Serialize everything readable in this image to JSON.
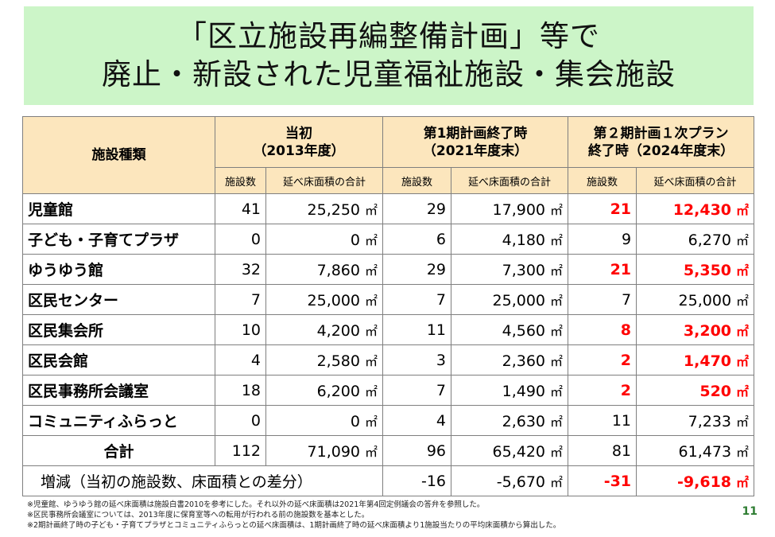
{
  "title": {
    "line1": "「区立施設再編整備計画」等で",
    "line2": "廃止・新設された児童福祉施設・集会施設"
  },
  "table": {
    "header": {
      "type_col": "施設種類",
      "g1_line1": "当初",
      "g1_line2": "（2013年度）",
      "g2_line1": "第1期計画終了時",
      "g2_line2": "（2021年度末）",
      "g3_line1": "第２期計画１次プラン",
      "g3_line2": "終了時（2024年度末）",
      "count": "施設数",
      "area": "延べ床面積の合計"
    },
    "unit": "㎡",
    "rows": [
      {
        "name": "児童館",
        "c1": "41",
        "a1": "25,250",
        "c2": "29",
        "a2": "17,900",
        "c3": "21",
        "a3": "12,430"
      },
      {
        "name": "子ども・子育てプラザ",
        "c1": "0",
        "a1": "0",
        "c2": "6",
        "a2": "4,180",
        "c3": "9",
        "a3": "6,270"
      },
      {
        "name": "ゆうゆう館",
        "c1": "32",
        "a1": "7,860",
        "c2": "29",
        "a2": "7,300",
        "c3": "21",
        "a3": "5,350"
      },
      {
        "name": "区民センター",
        "c1": "7",
        "a1": "25,000",
        "c2": "7",
        "a2": "25,000",
        "c3": "7",
        "a3": "25,000"
      },
      {
        "name": "区民集会所",
        "c1": "10",
        "a1": "4,200",
        "c2": "11",
        "a2": "4,560",
        "c3": "8",
        "a3": "3,200"
      },
      {
        "name": "区民会館",
        "c1": "4",
        "a1": "2,580",
        "c2": "3",
        "a2": "2,360",
        "c3": "2",
        "a3": "1,470"
      },
      {
        "name": "区民事務所会議室",
        "c1": "18",
        "a1": "6,200",
        "c2": "7",
        "a2": "1,490",
        "c3": "2",
        "a3": "520"
      },
      {
        "name": "コミュニティふらっと",
        "c1": "0",
        "a1": "0",
        "c2": "4",
        "a2": "2,630",
        "c3": "11",
        "a3": "7,233"
      }
    ],
    "total": {
      "name": "合計",
      "c1": "112",
      "a1": "71,090",
      "c2": "96",
      "a2": "65,420",
      "c3": "81",
      "a3": "61,473"
    },
    "diff": {
      "label": "増減（当初の施設数、床面積との差分）",
      "c2": "-16",
      "a2": "-5,670",
      "c3": "-31",
      "a3": "-9,618"
    }
  },
  "notes": {
    "n1": "※児童館、ゆうゆう館の延べ床面積は施設白書2010を参考にした。それ以外の延べ床面積は2021年第4回定例議会の答弁を参照した。",
    "n2": "※区民事務所会議室については、2013年度に保育室等への転用が行われる前の施設数を基本とした。",
    "n3": "※2期計画終了時の子ども・子育てプラザとコミュニティふらっとの延べ床面積は、1期計画終了時の延べ床面積より1施設当たりの平均床面積から算出した。"
  },
  "page_number": "11",
  "colors": {
    "title_bg": "#ccf5c8",
    "header_bg": "#fce6bd",
    "highlight": "#ff0000"
  }
}
